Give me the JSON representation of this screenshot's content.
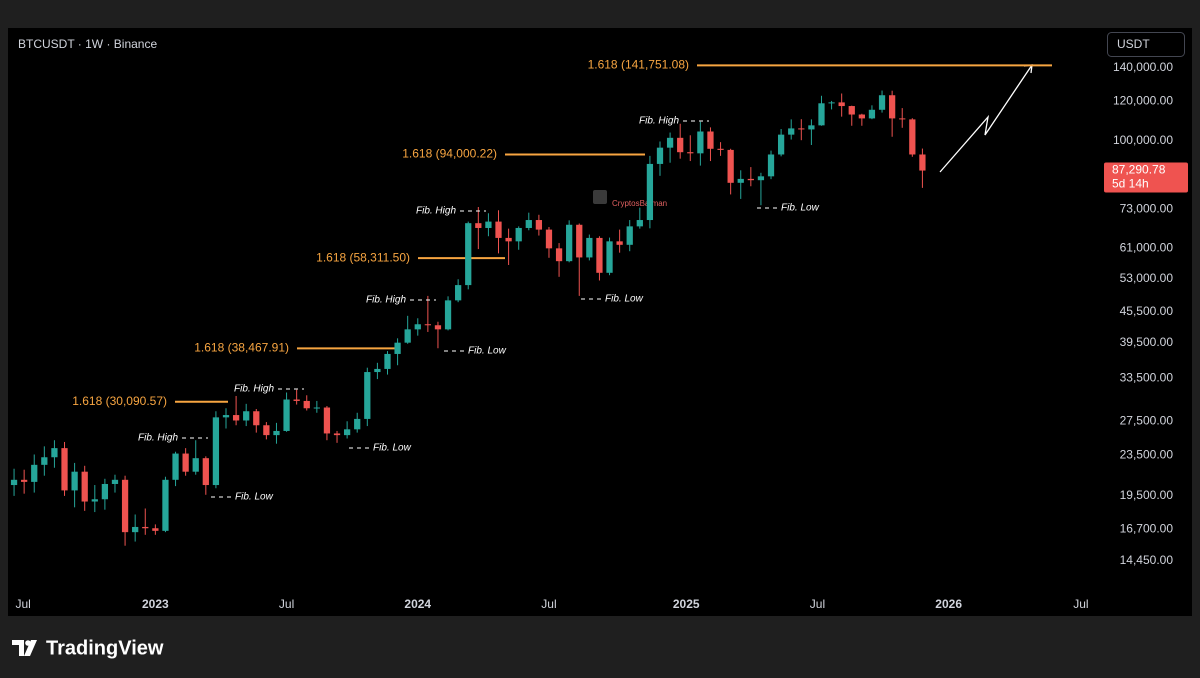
{
  "chart_data": {
    "type": "candlestick",
    "title": "BTCUSDT · 1W · Binance",
    "currency": "USDT",
    "watermark": "CryptosBatman",
    "brand": "TradingView",
    "log_scale": true,
    "up_color": "#26a69a",
    "down_color": "#ef5350",
    "annotation_color": "#f7a541",
    "open": [
      20500,
      21000,
      20800,
      22500,
      23300,
      24300,
      20000,
      21800,
      19000,
      19200,
      20600,
      21000,
      16500,
      16900,
      16800,
      16600,
      21000,
      23700,
      21800,
      23200,
      20500,
      28000,
      28300,
      27600,
      28800,
      27000,
      25800,
      26300,
      30400,
      30200,
      29200,
      29300,
      26000,
      25800,
      26500,
      27800,
      34500,
      35000,
      37500,
      39500,
      42000,
      43000,
      42800,
      42000,
      48000,
      51500,
      68500,
      67000,
      69000,
      64000,
      63000,
      67000,
      69500,
      66500,
      61000,
      57500,
      68000,
      58500,
      64000,
      54500,
      63000,
      62000,
      67500,
      69500,
      90000,
      97000,
      101500,
      95000,
      94500,
      104500,
      96500,
      96000,
      82500,
      84000,
      83500,
      85000,
      94000,
      103000,
      106000,
      105500,
      107500,
      119000,
      119500,
      117500,
      113000,
      111000,
      115500,
      123500,
      111000,
      110500,
      94000
    ],
    "high": [
      22100,
      22000,
      23600,
      24500,
      25200,
      25000,
      22700,
      22400,
      20500,
      21100,
      21500,
      21400,
      17900,
      18400,
      17100,
      21300,
      23900,
      24300,
      25200,
      23400,
      28800,
      29200,
      30900,
      29800,
      29100,
      27400,
      27300,
      31400,
      31800,
      31000,
      30200,
      29500,
      26300,
      27500,
      28600,
      35200,
      36000,
      38000,
      40300,
      44700,
      44200,
      49000,
      43500,
      48900,
      52900,
      69000,
      73800,
      71700,
      72700,
      66800,
      67500,
      71900,
      71200,
      67300,
      62500,
      69400,
      68400,
      65000,
      64500,
      64100,
      66500,
      69500,
      73600,
      93400,
      99800,
      104000,
      108300,
      102700,
      109300,
      106500,
      99500,
      96500,
      87400,
      88700,
      86400,
      95700,
      105700,
      110500,
      110600,
      110500,
      123200,
      120300,
      124500,
      117700,
      113400,
      117900,
      126200,
      126100,
      116400,
      111100,
      96600
    ],
    "low": [
      19500,
      19700,
      19800,
      21400,
      22200,
      19500,
      18500,
      18200,
      18100,
      18300,
      19800,
      15500,
      15800,
      16300,
      16300,
      16500,
      20400,
      21400,
      21500,
      19600,
      20200,
      26600,
      27000,
      26900,
      26100,
      25300,
      24800,
      26200,
      29700,
      28900,
      28600,
      25200,
      24900,
      25400,
      26100,
      26900,
      33400,
      34100,
      35600,
      39300,
      40800,
      41500,
      38500,
      41800,
      47600,
      50500,
      60800,
      64500,
      59600,
      56500,
      60600,
      66300,
      64700,
      58400,
      53500,
      57200,
      49000,
      57700,
      52600,
      53900,
      59800,
      60200,
      66800,
      66900,
      85200,
      90500,
      92200,
      91200,
      89300,
      91200,
      93400,
      78200,
      76600,
      81200,
      74400,
      83900,
      93200,
      100700,
      100400,
      98200,
      107300,
      115700,
      111900,
      107300,
      107300,
      110600,
      114000,
      102000,
      106300,
      93000,
      80600
    ],
    "close": [
      21000,
      20800,
      22500,
      23300,
      24300,
      20000,
      21800,
      19000,
      19200,
      20600,
      21000,
      16500,
      16900,
      16800,
      16600,
      21000,
      23700,
      21800,
      23200,
      20500,
      28000,
      28300,
      27600,
      28800,
      27000,
      25800,
      26300,
      30400,
      30200,
      29200,
      29300,
      26000,
      25800,
      26500,
      27800,
      34500,
      35000,
      37500,
      39500,
      42000,
      43000,
      42800,
      42000,
      48000,
      51500,
      68500,
      67000,
      69000,
      64000,
      63000,
      67000,
      69500,
      66500,
      61000,
      57500,
      68000,
      58500,
      64000,
      54500,
      63000,
      62000,
      67500,
      69500,
      90000,
      97000,
      101500,
      95000,
      94500,
      104500,
      96500,
      96000,
      82500,
      84000,
      83500,
      85000,
      94000,
      103000,
      106000,
      105500,
      107500,
      119000,
      119500,
      117500,
      113000,
      111000,
      115500,
      123500,
      111000,
      110500,
      94000,
      87290.78
    ],
    "last_price_label": "87,290.78",
    "countdown": "5d 14h",
    "xlim": [
      -0.6,
      107.1
    ],
    "xticks": [
      {
        "value": 0.9,
        "label": "Jul"
      },
      {
        "value": 14,
        "label": "2023"
      },
      {
        "value": 27,
        "label": "Jul"
      },
      {
        "value": 40,
        "label": "2024"
      },
      {
        "value": 53,
        "label": "Jul"
      },
      {
        "value": 66.6,
        "label": "2025"
      },
      {
        "value": 79.6,
        "label": "Jul"
      },
      {
        "value": 92.6,
        "label": "2026"
      },
      {
        "value": 105.7,
        "label": "Jul"
      }
    ],
    "ylim": [
      12640,
      166800
    ],
    "yticks": [
      {
        "value": 140000,
        "label": "140,000.00"
      },
      {
        "value": 120000,
        "label": "120,000.00"
      },
      {
        "value": 100000,
        "label": "100,000.00"
      },
      {
        "value": 73000,
        "label": "73,000.00"
      },
      {
        "value": 61000,
        "label": "61,000.00"
      },
      {
        "value": 53000,
        "label": "53,000.00"
      },
      {
        "value": 45500,
        "label": "45,500.00"
      },
      {
        "value": 39500,
        "label": "39,500.00"
      },
      {
        "value": 33500,
        "label": "33,500.00"
      },
      {
        "value": 27500,
        "label": "27,500.00"
      },
      {
        "value": 23500,
        "label": "23,500.00"
      },
      {
        "value": 19500,
        "label": "19,500.00"
      },
      {
        "value": 16700,
        "label": "16,700.00"
      },
      {
        "value": 14450,
        "label": "14,450.00"
      }
    ],
    "fib_levels": [
      {
        "value": 141751.08,
        "label": "1.618 (141,751.08)"
      },
      {
        "value": 94000.22,
        "label": "1.618 (94,000.22)"
      },
      {
        "value": 58311.5,
        "label": "1.618 (58,311.50)"
      },
      {
        "value": 38467.91,
        "label": "1.618 (38,467.91)"
      },
      {
        "value": 30090.57,
        "label": "1.618 (30,090.57)"
      }
    ],
    "fib_high_labels": [
      "Fib. High",
      "Fib. High",
      "Fib. High",
      "Fib. High",
      "Fib. High"
    ],
    "fib_low_labels": [
      "Fib. Low",
      "Fib. Low",
      "Fib. Low",
      "Fib. Low",
      "Fib. Low"
    ]
  }
}
